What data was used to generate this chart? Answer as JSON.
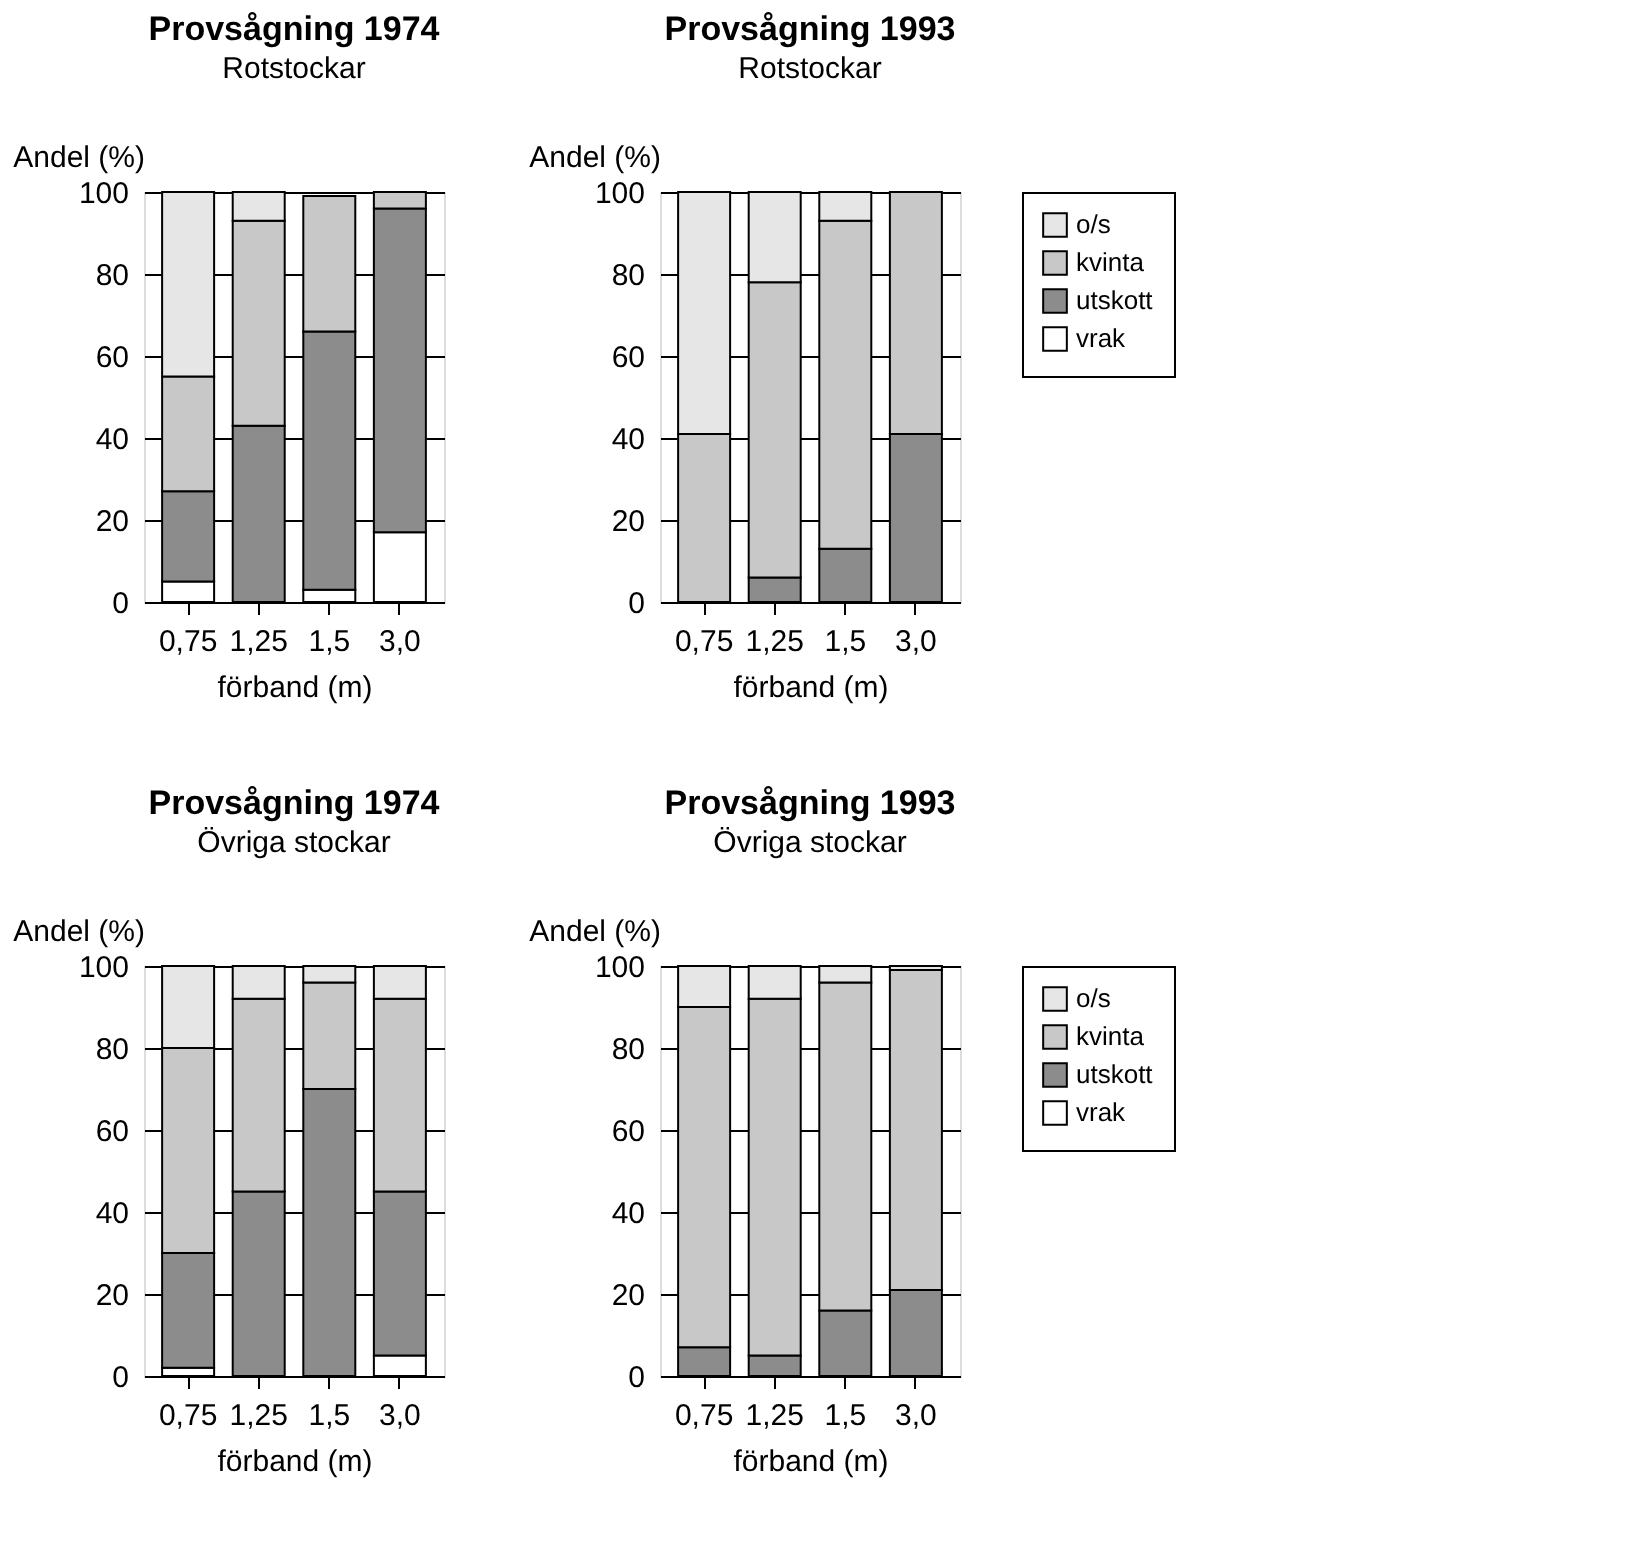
{
  "chart_data": [
    {
      "type": "bar",
      "stacked": true,
      "title": "Provsågning 1974",
      "subtitle": "Rotstockar",
      "xlabel": "förband (m)",
      "ylabel": "Andel (%)",
      "categories": [
        "0,75",
        "1,25",
        "1,5",
        "3,0"
      ],
      "ylim": [
        0,
        100
      ],
      "yticks": [
        0,
        20,
        40,
        60,
        80,
        100
      ],
      "grid": "y",
      "legend": "right",
      "series": [
        {
          "name": "vrak",
          "color": "#ffffff",
          "values": [
            5,
            0,
            3,
            17
          ]
        },
        {
          "name": "utskott",
          "color": "#8c8c8c",
          "values": [
            22,
            43,
            63,
            79
          ]
        },
        {
          "name": "kvinta",
          "color": "#c8c8c8",
          "values": [
            28,
            50,
            33,
            4
          ]
        },
        {
          "name": "o/s",
          "color": "#e6e6e6",
          "values": [
            45,
            7,
            0,
            0
          ]
        }
      ]
    },
    {
      "type": "bar",
      "stacked": true,
      "title": "Provsågning 1993",
      "subtitle": "Rotstockar",
      "xlabel": "förband (m)",
      "ylabel": "Andel (%)",
      "categories": [
        "0,75",
        "1,25",
        "1,5",
        "3,0"
      ],
      "ylim": [
        0,
        100
      ],
      "yticks": [
        0,
        20,
        40,
        60,
        80,
        100
      ],
      "grid": "y",
      "legend": "right",
      "series": [
        {
          "name": "vrak",
          "color": "#ffffff",
          "values": [
            0,
            0,
            0,
            0
          ]
        },
        {
          "name": "utskott",
          "color": "#8c8c8c",
          "values": [
            0,
            6,
            13,
            41
          ]
        },
        {
          "name": "kvinta",
          "color": "#c8c8c8",
          "values": [
            41,
            72,
            80,
            59
          ]
        },
        {
          "name": "o/s",
          "color": "#e6e6e6",
          "values": [
            59,
            22,
            7,
            0
          ]
        }
      ]
    },
    {
      "type": "bar",
      "stacked": true,
      "title": "Provsågning 1974",
      "subtitle": "Övriga stockar",
      "xlabel": "förband (m)",
      "ylabel": "Andel (%)",
      "categories": [
        "0,75",
        "1,25",
        "1,5",
        "3,0"
      ],
      "ylim": [
        0,
        100
      ],
      "yticks": [
        0,
        20,
        40,
        60,
        80,
        100
      ],
      "grid": "y",
      "legend": "right",
      "series": [
        {
          "name": "vrak",
          "color": "#ffffff",
          "values": [
            2,
            0,
            0,
            5
          ]
        },
        {
          "name": "utskott",
          "color": "#8c8c8c",
          "values": [
            28,
            45,
            70,
            40
          ]
        },
        {
          "name": "kvinta",
          "color": "#c8c8c8",
          "values": [
            50,
            47,
            26,
            47
          ]
        },
        {
          "name": "o/s",
          "color": "#e6e6e6",
          "values": [
            20,
            8,
            4,
            8
          ]
        }
      ]
    },
    {
      "type": "bar",
      "stacked": true,
      "title": "Provsågning 1993",
      "subtitle": "Övriga stockar",
      "xlabel": "förband (m)",
      "ylabel": "Andel (%)",
      "categories": [
        "0,75",
        "1,25",
        "1,5",
        "3,0"
      ],
      "ylim": [
        0,
        100
      ],
      "yticks": [
        0,
        20,
        40,
        60,
        80,
        100
      ],
      "grid": "y",
      "legend": "right",
      "series": [
        {
          "name": "vrak",
          "color": "#ffffff",
          "values": [
            0,
            0,
            0,
            0
          ]
        },
        {
          "name": "utskott",
          "color": "#8c8c8c",
          "values": [
            7,
            5,
            16,
            21
          ]
        },
        {
          "name": "kvinta",
          "color": "#c8c8c8",
          "values": [
            83,
            87,
            80,
            78
          ]
        },
        {
          "name": "o/s",
          "color": "#e6e6e6",
          "values": [
            10,
            8,
            4,
            1
          ]
        }
      ]
    }
  ]
}
